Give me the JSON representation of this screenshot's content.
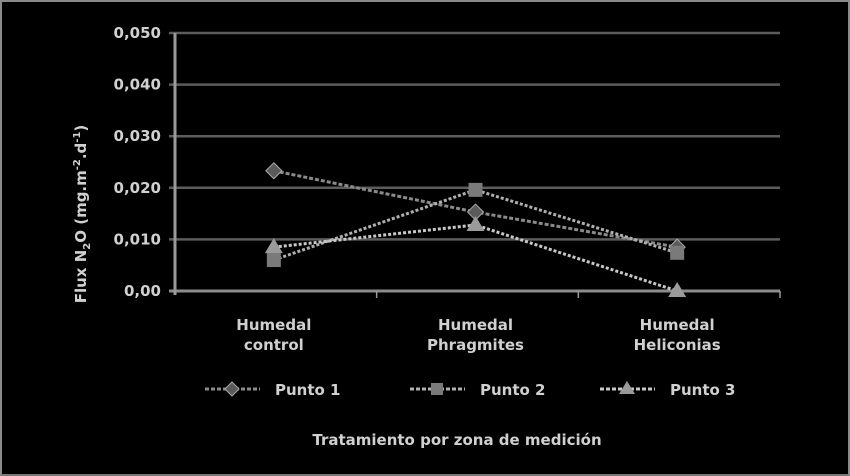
{
  "chart_data": {
    "type": "line",
    "title": "",
    "xlabel": "Tratamiento por zona de medición",
    "ylabel": "Flux N2O (mg.m-2.d-1)",
    "ylabel_display": {
      "main": "Flux N",
      "sub": "2",
      "mid": "O (mg.m",
      "sup1": "-2",
      "mid2": ".d",
      "sup2": "-1",
      "end": ")"
    },
    "categories": [
      "Humedal control",
      "Humedal Phragmites",
      "Humedal Heliconias"
    ],
    "category_lines": [
      [
        "Humedal",
        "control"
      ],
      [
        "Humedal",
        "Phragmites"
      ],
      [
        "Humedal",
        "Heliconias"
      ]
    ],
    "series": [
      {
        "name": "Punto 1",
        "marker": "diamond",
        "color": "#5a5a5a",
        "values": [
          0.0233,
          0.0153,
          0.0085
        ]
      },
      {
        "name": "Punto 2",
        "marker": "square",
        "color": "#7a7a7a",
        "values": [
          0.006,
          0.0196,
          0.0074
        ]
      },
      {
        "name": "Punto 3",
        "marker": "triangle",
        "color": "#9a9a9a",
        "values": [
          0.0085,
          0.0128,
          0.0
        ]
      }
    ],
    "ylim": [
      0,
      0.05
    ],
    "yticks": [
      0.0,
      0.01,
      0.02,
      0.03,
      0.04,
      0.05
    ],
    "ytick_labels": [
      "0,00",
      "0,010",
      "0,020",
      "0,030",
      "0,040",
      "0,050"
    ],
    "grid": true,
    "legend_position": "bottom"
  }
}
